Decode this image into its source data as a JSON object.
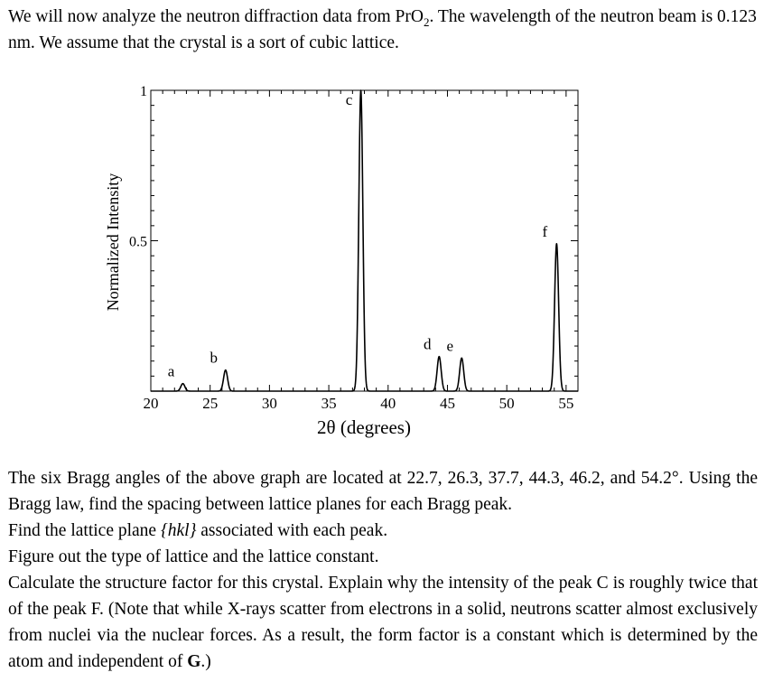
{
  "intro": {
    "part1": "We will now analyze the neutron diffraction data from PrO",
    "sub": "2",
    "part2": ". The wavelength of the neutron beam is 0.123 nm. We assume that the crystal is a sort of cubic lattice."
  },
  "chart_data": {
    "type": "line",
    "xlabel": "2θ (degrees)",
    "ylabel": "Normalized Intensity",
    "xlim": [
      20,
      56
    ],
    "ylim": [
      0,
      1
    ],
    "xticks": [
      20,
      25,
      30,
      35,
      40,
      45,
      50,
      55
    ],
    "yticks": [
      0.5,
      1
    ],
    "ytick_labels": [
      "0.5",
      "1"
    ],
    "grid": false,
    "peaks": [
      {
        "label": "a",
        "x": 22.7,
        "y": 0.025
      },
      {
        "label": "b",
        "x": 26.3,
        "y": 0.07
      },
      {
        "label": "c",
        "x": 37.7,
        "y": 1.0
      },
      {
        "label": "d",
        "x": 44.3,
        "y": 0.115
      },
      {
        "label": "e",
        "x": 46.2,
        "y": 0.11
      },
      {
        "label": "f",
        "x": 54.2,
        "y": 0.49
      }
    ]
  },
  "body": {
    "p1": "The six Bragg angles of the above graph are located at 22.7, 26.3, 37.7, 44.3, 46.2, and 54.2°. Using the Bragg law, find the spacing between lattice planes for each Bragg peak.",
    "p2_pre": "Find the lattice plane ",
    "p2_hkl": "{hkl}",
    "p2_post": " associated with each peak.",
    "p3": "Figure out the type of lattice and the lattice constant.",
    "p4_pre": "Calculate the structure factor for this crystal. Explain why the intensity of the peak C is roughly twice that of the peak F. (Note that while X-rays scatter from electrons in a solid, neutrons scatter almost exclusively from nuclei via the nuclear forces. As a result, the form factor is a constant which is determined by the atom and independent of ",
    "p4_bold": "G",
    "p4_post": ".)"
  }
}
